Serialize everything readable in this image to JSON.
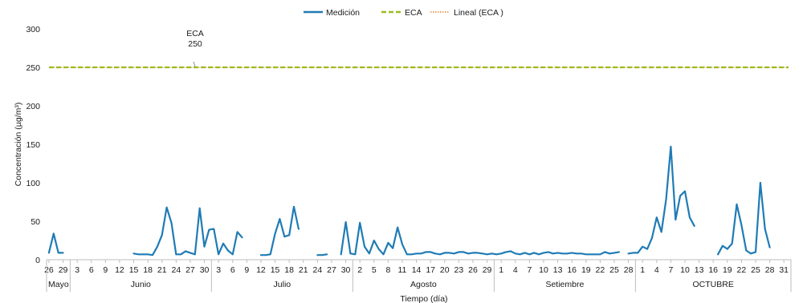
{
  "chart_data": {
    "type": "line",
    "xlabel": "Tiempo  (día)",
    "ylabel": "Concentración  (µg/m³)",
    "ylim": [
      0,
      300
    ],
    "yticks": [
      0,
      50,
      100,
      150,
      200,
      250,
      300
    ],
    "grid": false,
    "legend_position": "top-center",
    "legend": [
      {
        "name": "Medición",
        "style": "solid",
        "color": "#1f7bb5"
      },
      {
        "name": "ECA",
        "style": "dashed",
        "color": "#9bbb1d"
      },
      {
        "name": "Lineal (ECA )",
        "style": "dotted",
        "color": "#e8823a"
      }
    ],
    "x_tick_labels": [
      "26",
      "29",
      "3",
      "6",
      "9",
      "12",
      "15",
      "18",
      "21",
      "24",
      "27",
      "30",
      "3",
      "6",
      "9",
      "12",
      "15",
      "18",
      "21",
      "24",
      "27",
      "30",
      "2",
      "5",
      "8",
      "11",
      "14",
      "17",
      "20",
      "23",
      "26",
      "29",
      "1",
      "4",
      "7",
      "10",
      "13",
      "16",
      "19",
      "22",
      "25",
      "28",
      "1",
      "4",
      "7",
      "10",
      "13",
      "16",
      "19",
      "22",
      "25",
      "28",
      "31"
    ],
    "months": [
      "Mayo",
      "Junio",
      "Julio",
      "Agosto",
      "Setiembre",
      "OCTUBRE"
    ],
    "annotation": {
      "line1": "ECA",
      "line2": "250"
    },
    "eca_value": 250,
    "series": [
      {
        "name": "Medición",
        "color": "#1f7bb5",
        "segments": [
          [
            [
              0,
              9
            ],
            [
              1,
              34
            ],
            [
              2,
              9
            ],
            [
              3,
              9
            ]
          ],
          [
            [
              18,
              8
            ],
            [
              19,
              7
            ],
            [
              20,
              7
            ],
            [
              21,
              7
            ],
            [
              22,
              6
            ],
            [
              23,
              17
            ],
            [
              24,
              32
            ],
            [
              25,
              68
            ],
            [
              26,
              48
            ],
            [
              27,
              7
            ],
            [
              28,
              7
            ],
            [
              29,
              11
            ],
            [
              30,
              9
            ],
            [
              31,
              7
            ],
            [
              32,
              67
            ],
            [
              33,
              17
            ],
            [
              34,
              39
            ],
            [
              35,
              40
            ],
            [
              36,
              7
            ],
            [
              37,
              21
            ],
            [
              38,
              12
            ],
            [
              39,
              7
            ],
            [
              40,
              36
            ],
            [
              41,
              29
            ]
          ],
          [
            [
              45,
              6
            ],
            [
              46,
              6
            ],
            [
              47,
              7
            ],
            [
              48,
              34
            ],
            [
              49,
              53
            ],
            [
              50,
              30
            ],
            [
              51,
              32
            ],
            [
              52,
              69
            ],
            [
              53,
              40
            ]
          ],
          [
            [
              57,
              6
            ],
            [
              58,
              6
            ],
            [
              59,
              7
            ]
          ],
          [
            [
              62,
              7
            ],
            [
              63,
              49
            ],
            [
              64,
              8
            ],
            [
              65,
              7
            ],
            [
              66,
              48
            ],
            [
              67,
              17
            ],
            [
              68,
              8
            ],
            [
              69,
              25
            ],
            [
              70,
              14
            ],
            [
              71,
              7
            ],
            [
              72,
              22
            ],
            [
              73,
              15
            ],
            [
              74,
              42
            ],
            [
              75,
              20
            ],
            [
              76,
              7
            ],
            [
              77,
              7
            ],
            [
              78,
              8
            ],
            [
              79,
              8
            ],
            [
              80,
              10
            ],
            [
              81,
              10
            ],
            [
              82,
              8
            ],
            [
              83,
              7
            ],
            [
              84,
              9
            ],
            [
              85,
              9
            ],
            [
              86,
              8
            ],
            [
              87,
              10
            ],
            [
              88,
              10
            ],
            [
              89,
              8
            ],
            [
              90,
              9
            ],
            [
              91,
              9
            ],
            [
              92,
              8
            ],
            [
              93,
              7
            ],
            [
              94,
              8
            ],
            [
              95,
              7
            ],
            [
              96,
              8
            ],
            [
              97,
              10
            ],
            [
              98,
              11
            ],
            [
              99,
              8
            ],
            [
              100,
              7
            ],
            [
              101,
              9
            ],
            [
              102,
              7
            ],
            [
              103,
              9
            ],
            [
              104,
              7
            ],
            [
              105,
              9
            ],
            [
              106,
              10
            ],
            [
              107,
              8
            ],
            [
              108,
              9
            ],
            [
              109,
              8
            ],
            [
              110,
              8
            ],
            [
              111,
              9
            ],
            [
              112,
              8
            ],
            [
              113,
              8
            ],
            [
              114,
              7
            ],
            [
              115,
              7
            ],
            [
              116,
              7
            ],
            [
              117,
              7
            ],
            [
              118,
              10
            ],
            [
              119,
              8
            ],
            [
              120,
              9
            ],
            [
              121,
              10
            ]
          ],
          [
            [
              123,
              8
            ],
            [
              124,
              9
            ],
            [
              125,
              9
            ],
            [
              126,
              17
            ],
            [
              127,
              14
            ],
            [
              128,
              28
            ],
            [
              129,
              55
            ],
            [
              130,
              36
            ],
            [
              131,
              78
            ],
            [
              132,
              147
            ],
            [
              133,
              52
            ],
            [
              134,
              83
            ],
            [
              135,
              89
            ],
            [
              136,
              55
            ],
            [
              137,
              44
            ]
          ],
          [
            [
              142,
              7
            ],
            [
              143,
              18
            ],
            [
              144,
              14
            ],
            [
              145,
              21
            ],
            [
              146,
              72
            ],
            [
              147,
              45
            ],
            [
              148,
              12
            ],
            [
              149,
              8
            ],
            [
              150,
              10
            ],
            [
              151,
              100
            ],
            [
              152,
              40
            ],
            [
              153,
              16
            ]
          ]
        ]
      }
    ]
  }
}
